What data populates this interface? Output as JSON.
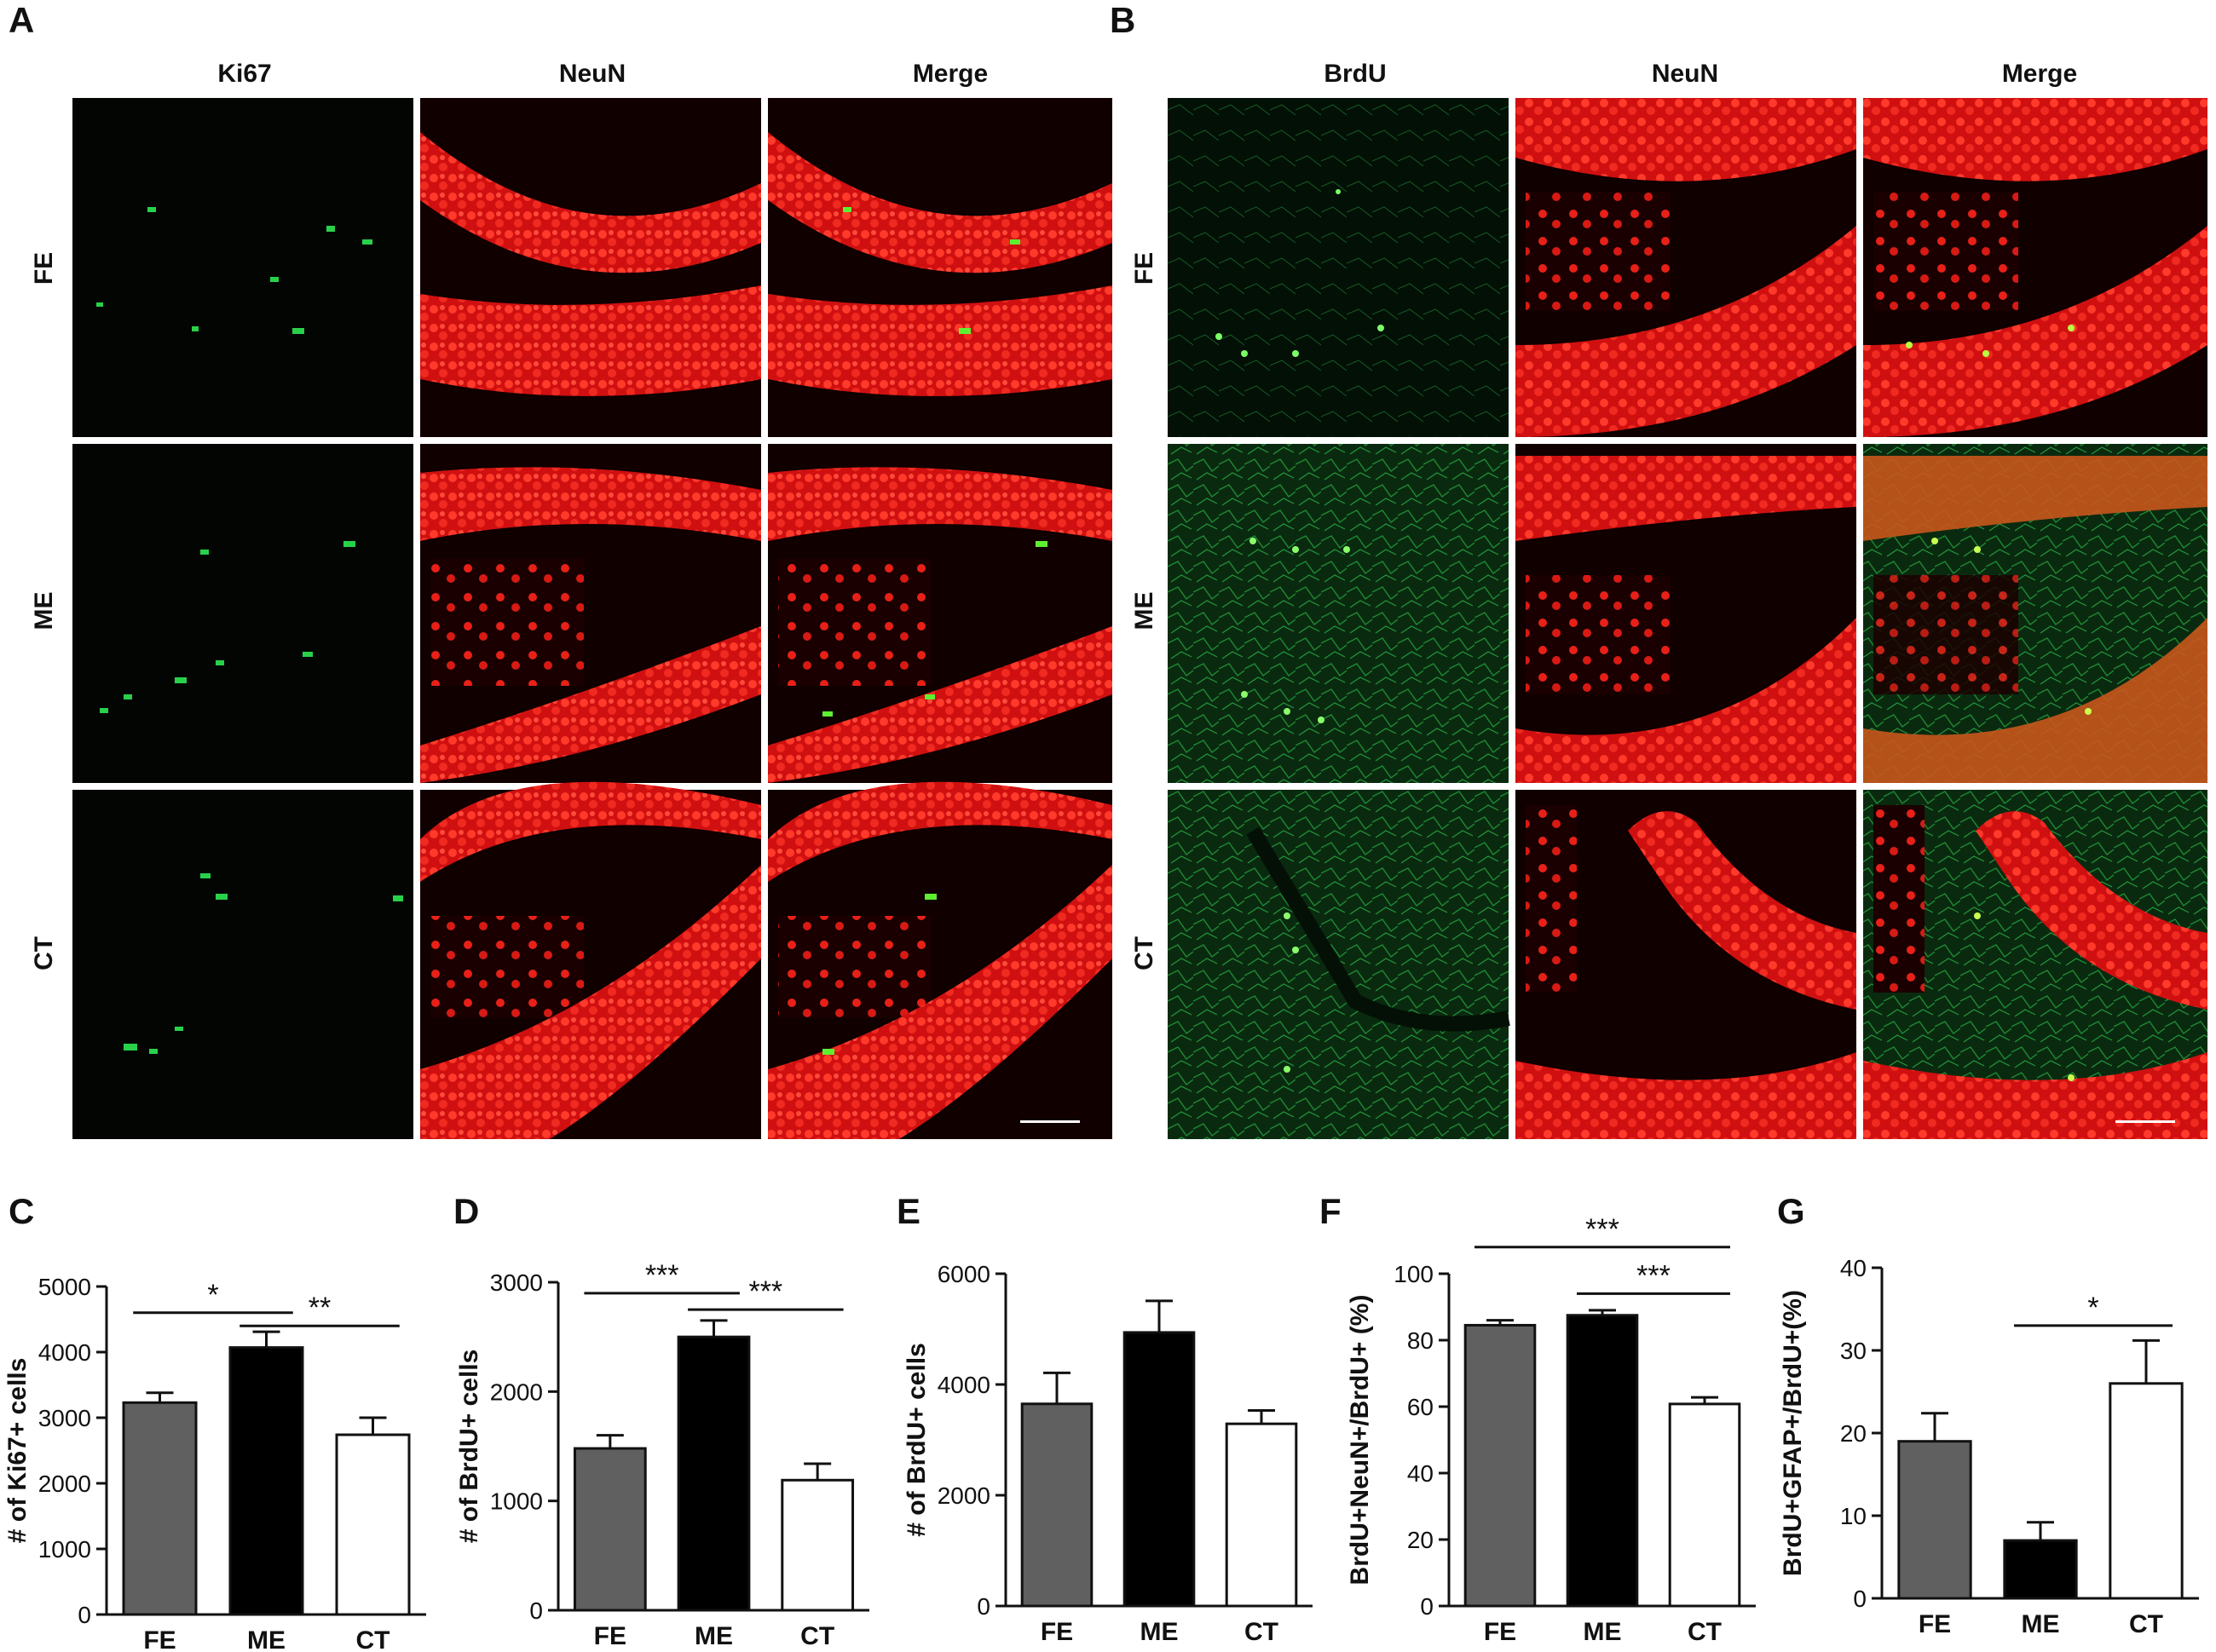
{
  "figure": {
    "panel_letters": [
      "A",
      "B",
      "C",
      "D",
      "E",
      "F",
      "G"
    ],
    "panel_a": {
      "columns": [
        "Ki67",
        "NeuN",
        "Merge"
      ],
      "rows": [
        "FE",
        "ME",
        "CT"
      ]
    },
    "panel_b": {
      "columns": [
        "BrdU",
        "NeuN",
        "Merge"
      ],
      "rows": [
        "FE",
        "ME",
        "CT"
      ]
    },
    "colors": {
      "FE": "#606060",
      "ME": "#000000",
      "CT": "#ffffff",
      "green_stain": "#22dd44",
      "red_stain": "#ee1c1c"
    }
  },
  "chart_data": [
    {
      "id": "C",
      "type": "bar",
      "categories": [
        "FE",
        "ME",
        "CT"
      ],
      "values": [
        3230,
        4070,
        2740
      ],
      "errors": [
        150,
        240,
        260
      ],
      "ylabel": "# of Ki67+ cells",
      "ylim": [
        0,
        5000
      ],
      "yticks": [
        "0",
        "1000",
        "2000",
        "3000",
        "4000",
        "5000"
      ],
      "significance": [
        {
          "from": 0,
          "to": 1,
          "label": "*",
          "y": 4600
        },
        {
          "from": 1,
          "to": 2,
          "label": "**",
          "y": 4400
        }
      ]
    },
    {
      "id": "D",
      "type": "bar",
      "categories": [
        "FE",
        "ME",
        "CT"
      ],
      "values": [
        1480,
        2500,
        1190
      ],
      "errors": [
        120,
        150,
        150
      ],
      "ylabel": "# of BrdU+ cells",
      "ylim": [
        0,
        3000
      ],
      "yticks": [
        "0",
        "1000",
        "2000",
        "3000"
      ],
      "significance": [
        {
          "from": 0,
          "to": 1,
          "label": "***",
          "y": 2900
        },
        {
          "from": 1,
          "to": 2,
          "label": "***",
          "y": 2750
        }
      ]
    },
    {
      "id": "E",
      "type": "bar",
      "categories": [
        "FE",
        "ME",
        "CT"
      ],
      "values": [
        3650,
        4940,
        3290
      ],
      "errors": [
        560,
        570,
        240
      ],
      "ylabel": "# of BrdU+ cells",
      "ylim": [
        0,
        6000
      ],
      "yticks": [
        "0",
        "2000",
        "4000",
        "6000"
      ],
      "significance": []
    },
    {
      "id": "F",
      "type": "bar",
      "categories": [
        "FE",
        "ME",
        "CT"
      ],
      "values": [
        84.5,
        87.5,
        60.8
      ],
      "errors": [
        1.5,
        1.5,
        2.0
      ],
      "ylabel": "BrdU+NeuN+/BrdU+ (%)",
      "ylim": [
        0,
        100
      ],
      "yticks": [
        "0",
        "20",
        "40",
        "60",
        "80",
        "100"
      ],
      "significance": [
        {
          "from": 0,
          "to": 2,
          "label": "***",
          "y": 108
        },
        {
          "from": 1,
          "to": 2,
          "label": "***",
          "y": 94
        }
      ]
    },
    {
      "id": "G",
      "type": "bar",
      "categories": [
        "FE",
        "ME",
        "CT"
      ],
      "values": [
        19.0,
        7.0,
        26.0
      ],
      "errors": [
        3.4,
        2.2,
        5.2
      ],
      "ylabel": "BrdU+GFAP+/BrdU+(%)",
      "ylim": [
        0,
        40
      ],
      "yticks": [
        "0",
        "10",
        "20",
        "30",
        "40"
      ],
      "significance": [
        {
          "from": 1,
          "to": 2,
          "label": "*",
          "y": 33
        }
      ]
    }
  ]
}
